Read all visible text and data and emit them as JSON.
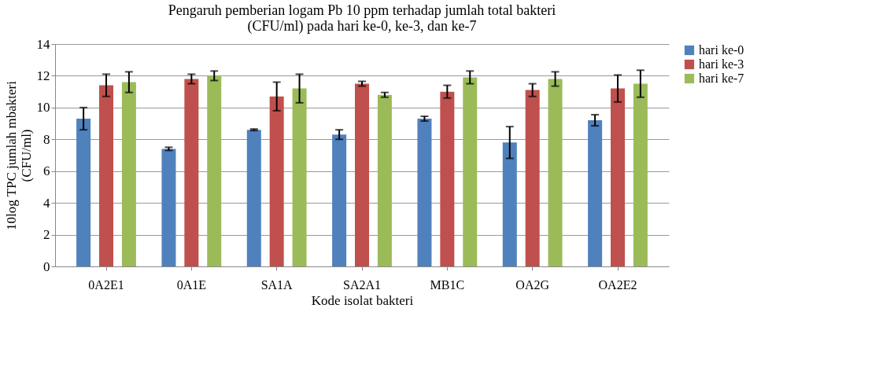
{
  "chart_data": {
    "type": "bar",
    "title": [
      "Pengaruh pemberian logam Pb 10 ppm terhadap jumlah total bakteri",
      "(CFU/ml) pada hari ke-0, ke-3, dan ke-7"
    ],
    "xlabel": "Kode isolat bakteri",
    "ylabel": [
      "10log TPC jumlah mbakteri",
      "(CFU/ml)"
    ],
    "categories": [
      "0A2E1",
      "0A1E",
      "SA1A",
      "SA2A1",
      "MB1C",
      "OA2G",
      "OA2E2"
    ],
    "series": [
      {
        "name": "hari ke-0",
        "color": "#4f81bd",
        "values": [
          9.3,
          7.4,
          8.6,
          8.3,
          9.3,
          7.8,
          9.2
        ],
        "errors": [
          0.7,
          0.1,
          0.05,
          0.3,
          0.15,
          1.0,
          0.35
        ]
      },
      {
        "name": "hari ke-3",
        "color": "#c0504d",
        "values": [
          11.4,
          11.8,
          10.7,
          11.5,
          11.0,
          11.1,
          11.2
        ],
        "errors": [
          0.7,
          0.3,
          0.9,
          0.15,
          0.4,
          0.4,
          0.85
        ]
      },
      {
        "name": "hari ke-7",
        "color": "#9bbb59",
        "values": [
          11.6,
          12.0,
          11.2,
          10.8,
          11.9,
          11.8,
          11.5
        ],
        "errors": [
          0.65,
          0.3,
          0.9,
          0.15,
          0.4,
          0.45,
          0.85
        ]
      }
    ],
    "ylim": [
      0,
      14
    ],
    "yticks": [
      0,
      2,
      4,
      6,
      8,
      10,
      12,
      14
    ],
    "grid": "y",
    "legend": "right"
  }
}
